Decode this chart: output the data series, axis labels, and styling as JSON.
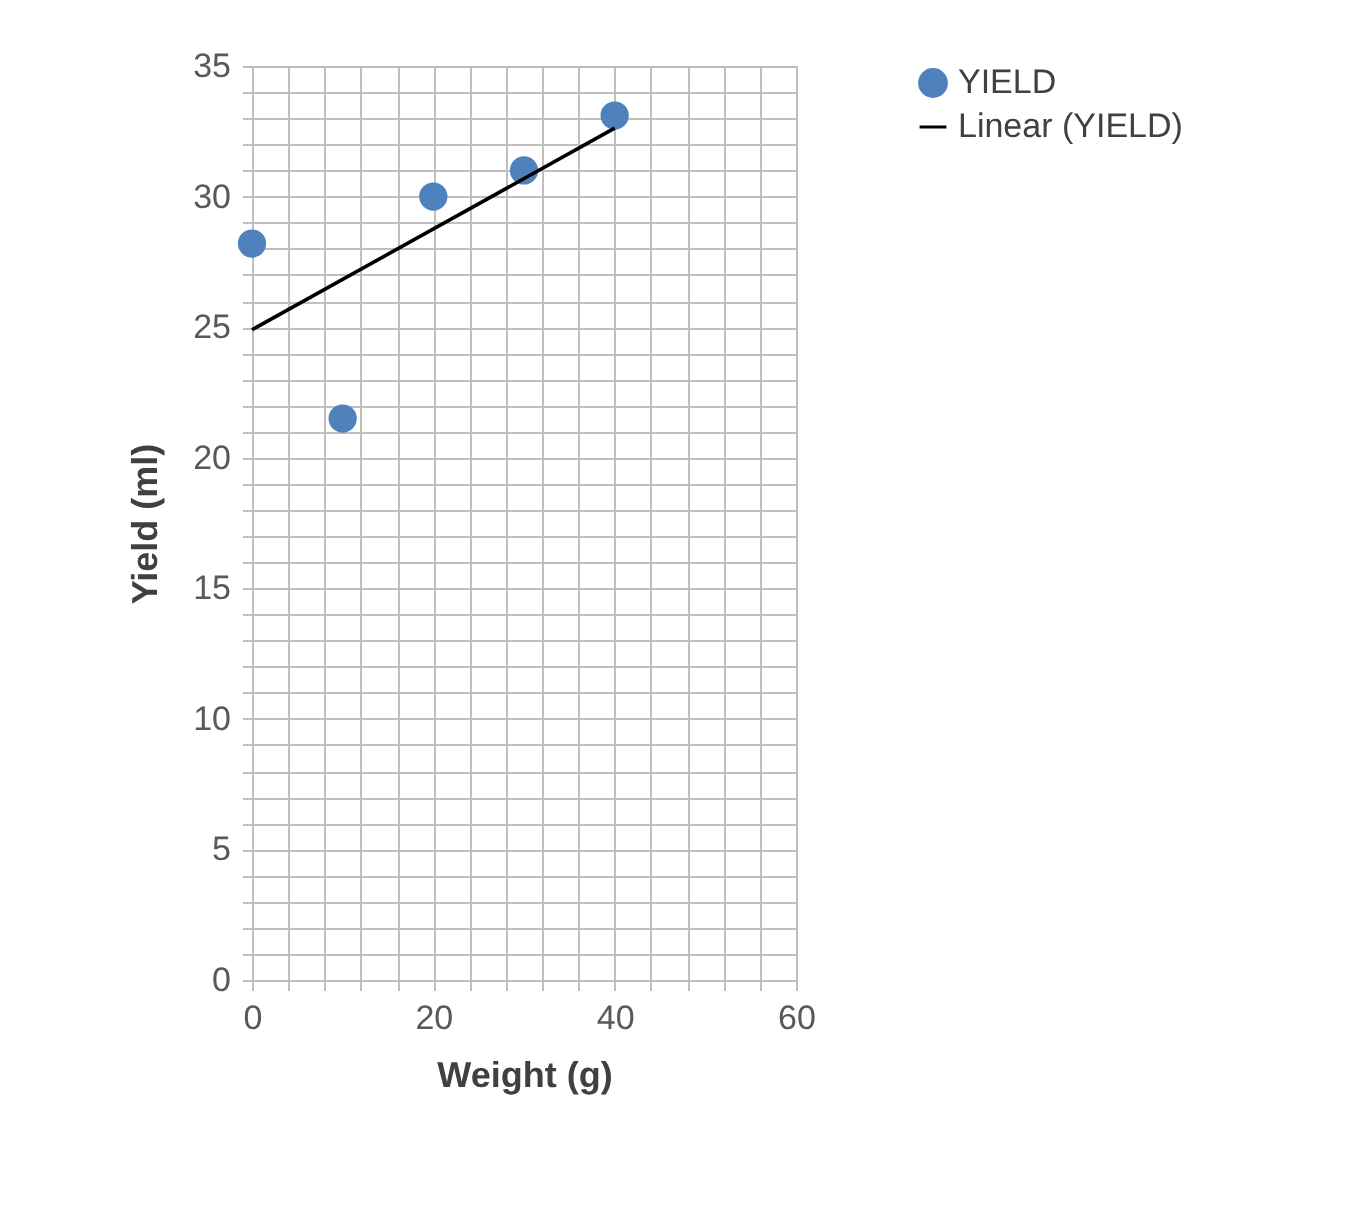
{
  "chart_data": {
    "type": "scatter",
    "xlabel": "Weight (g)",
    "ylabel": "Yield (ml)",
    "xlim": [
      0,
      60
    ],
    "ylim": [
      0,
      35
    ],
    "xticks": [
      0,
      {
        "value": 4,
        "label": null
      },
      {
        "value": 8,
        "label": null
      },
      {
        "value": 12,
        "label": null
      },
      {
        "value": 16,
        "label": null
      },
      20,
      {
        "value": 24,
        "label": null
      },
      {
        "value": 28,
        "label": null
      },
      {
        "value": 32,
        "label": null
      },
      {
        "value": 36,
        "label": null
      },
      40,
      {
        "value": 44,
        "label": null
      },
      {
        "value": 48,
        "label": null
      },
      {
        "value": 52,
        "label": null
      },
      {
        "value": 56,
        "label": null
      },
      60
    ],
    "yticks": [
      0,
      {
        "value": 1,
        "label": null
      },
      {
        "value": 2,
        "label": null
      },
      {
        "value": 3,
        "label": null
      },
      {
        "value": 4,
        "label": null
      },
      5,
      {
        "value": 6,
        "label": null
      },
      {
        "value": 7,
        "label": null
      },
      {
        "value": 8,
        "label": null
      },
      {
        "value": 9,
        "label": null
      },
      10,
      {
        "value": 11,
        "label": null
      },
      {
        "value": 12,
        "label": null
      },
      {
        "value": 13,
        "label": null
      },
      {
        "value": 14,
        "label": null
      },
      15,
      {
        "value": 16,
        "label": null
      },
      {
        "value": 17,
        "label": null
      },
      {
        "value": 18,
        "label": null
      },
      {
        "value": 19,
        "label": null
      },
      20,
      {
        "value": 21,
        "label": null
      },
      {
        "value": 22,
        "label": null
      },
      {
        "value": 23,
        "label": null
      },
      {
        "value": 24,
        "label": null
      },
      25,
      {
        "value": 26,
        "label": null
      },
      {
        "value": 27,
        "label": null
      },
      {
        "value": 28,
        "label": null
      },
      {
        "value": 29,
        "label": null
      },
      30,
      {
        "value": 31,
        "label": null
      },
      {
        "value": 32,
        "label": null
      },
      {
        "value": 33,
        "label": null
      },
      {
        "value": 34,
        "label": null
      },
      35
    ],
    "grid": true,
    "legend": "right",
    "series": [
      {
        "name": "YIELD",
        "color": "#4f81bd",
        "marker": "circle",
        "x": [
          0,
          10,
          20,
          30,
          40
        ],
        "values": [
          28.2,
          21.5,
          30,
          31,
          33.1
        ]
      },
      {
        "name": "Linear (YIELD)",
        "type": "line",
        "color": "#000000",
        "marker": "none",
        "line_style": "solid",
        "x": [
          0,
          40
        ],
        "values": [
          24.9,
          32.62
        ]
      }
    ]
  }
}
